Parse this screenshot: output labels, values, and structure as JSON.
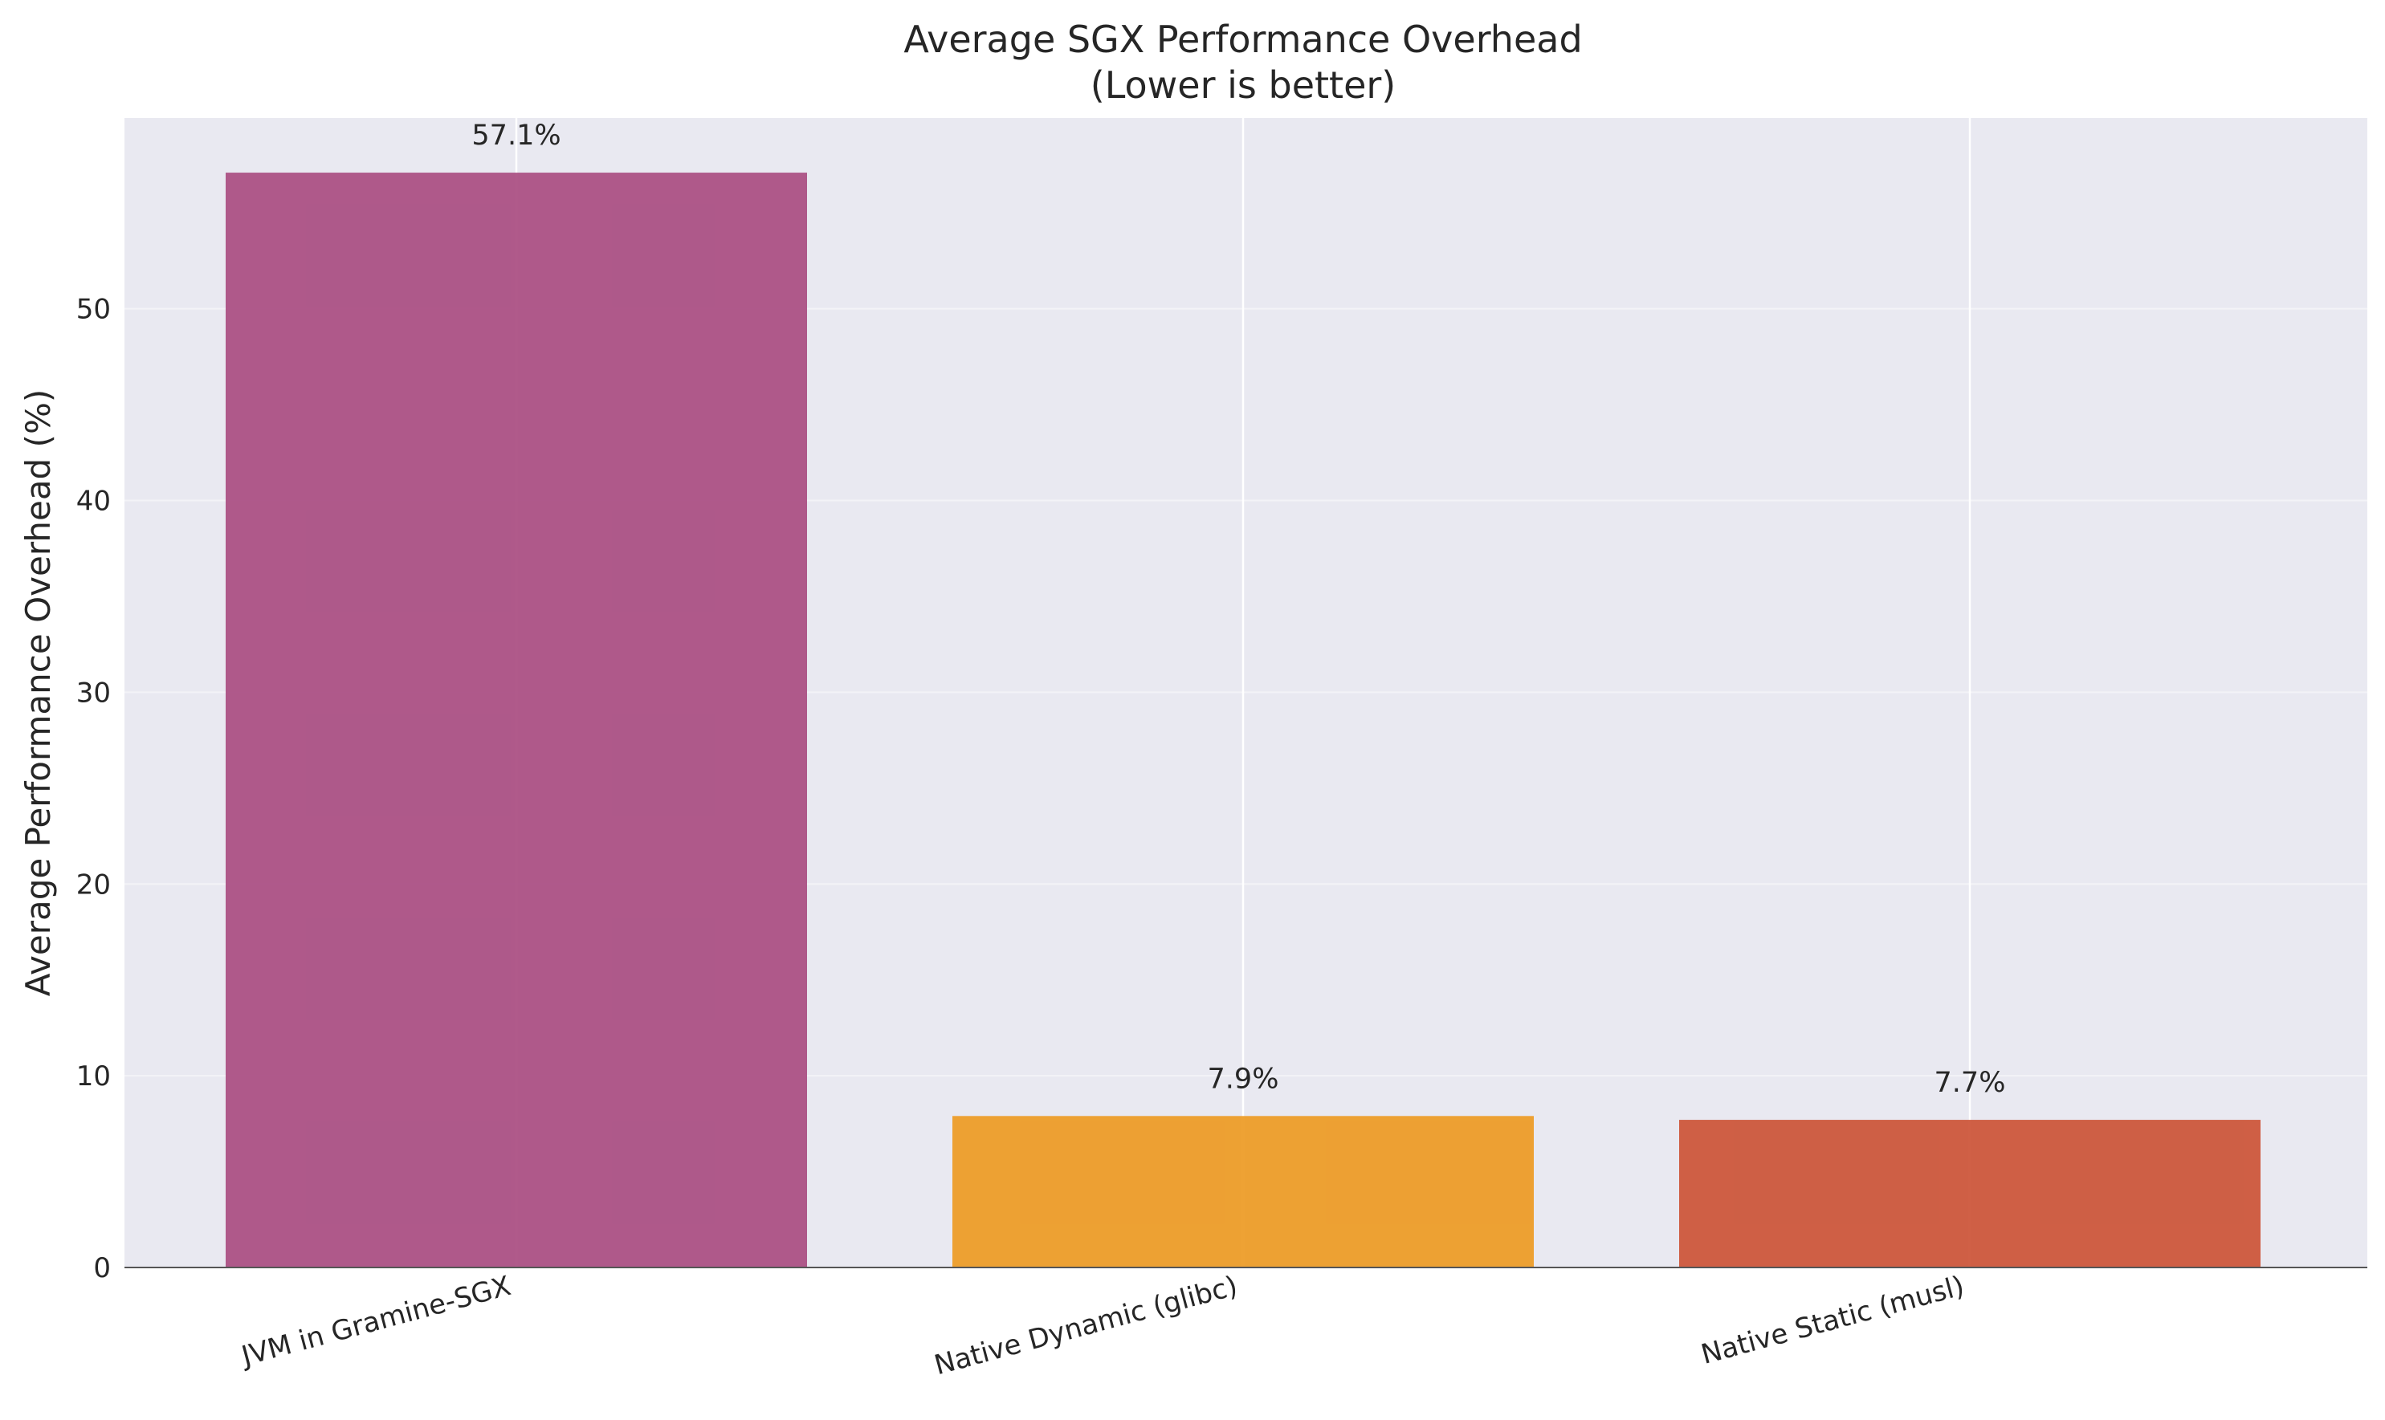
{
  "chart_data": {
    "type": "bar",
    "title": "Average SGX Performance Overhead",
    "subtitle": "(Lower is better)",
    "xlabel": "",
    "ylabel": "Average Performance Overhead (%)",
    "categories": [
      "JVM in Gramine-SGX",
      "Native Dynamic (glibc)",
      "Native Static (musl)"
    ],
    "values": [
      57.1,
      7.9,
      7.7
    ],
    "data_labels": [
      "57.1%",
      "7.9%",
      "7.7%"
    ],
    "bar_colors": [
      "#a94c81",
      "#ed9a23",
      "#cc5336"
    ],
    "ylim": [
      0,
      60
    ],
    "yticks": [
      0,
      10,
      20,
      30,
      40,
      50
    ],
    "ytick_labels": [
      "0",
      "10",
      "20",
      "30",
      "40",
      "50"
    ],
    "grid": true,
    "legend": "none",
    "background_color": "#e9e9f1"
  }
}
